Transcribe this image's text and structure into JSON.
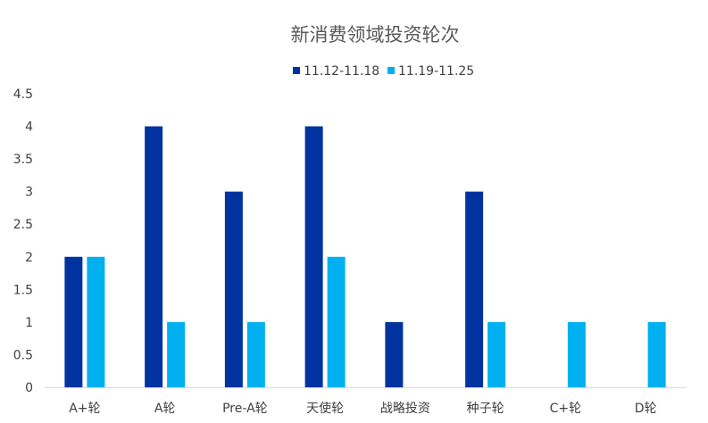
{
  "chart_data": {
    "type": "bar",
    "title": "新消费领域投资轮次",
    "categories": [
      "A+轮",
      "A轮",
      "Pre-A轮",
      "天使轮",
      "战略投资",
      "种子轮",
      "C+轮",
      "D轮"
    ],
    "series": [
      {
        "name": "11.12-11.18",
        "color": "#0033A0",
        "values": [
          2,
          4,
          3,
          4,
          1,
          3,
          0,
          0
        ]
      },
      {
        "name": "11.19-11.25",
        "color": "#00B0F0",
        "values": [
          2,
          1,
          1,
          2,
          0,
          1,
          1,
          1
        ]
      }
    ],
    "ylim": [
      0,
      4.5
    ],
    "yticks": [
      0,
      0.5,
      1,
      1.5,
      2,
      2.5,
      3,
      3.5,
      4,
      4.5
    ],
    "ytick_labels": [
      "0",
      "0.5",
      "1",
      "1.5",
      "2",
      "2.5",
      "3",
      "3.5",
      "4",
      "4.5"
    ],
    "xlabel": "",
    "ylabel": "",
    "grid": false,
    "legend_position": "top-center"
  }
}
